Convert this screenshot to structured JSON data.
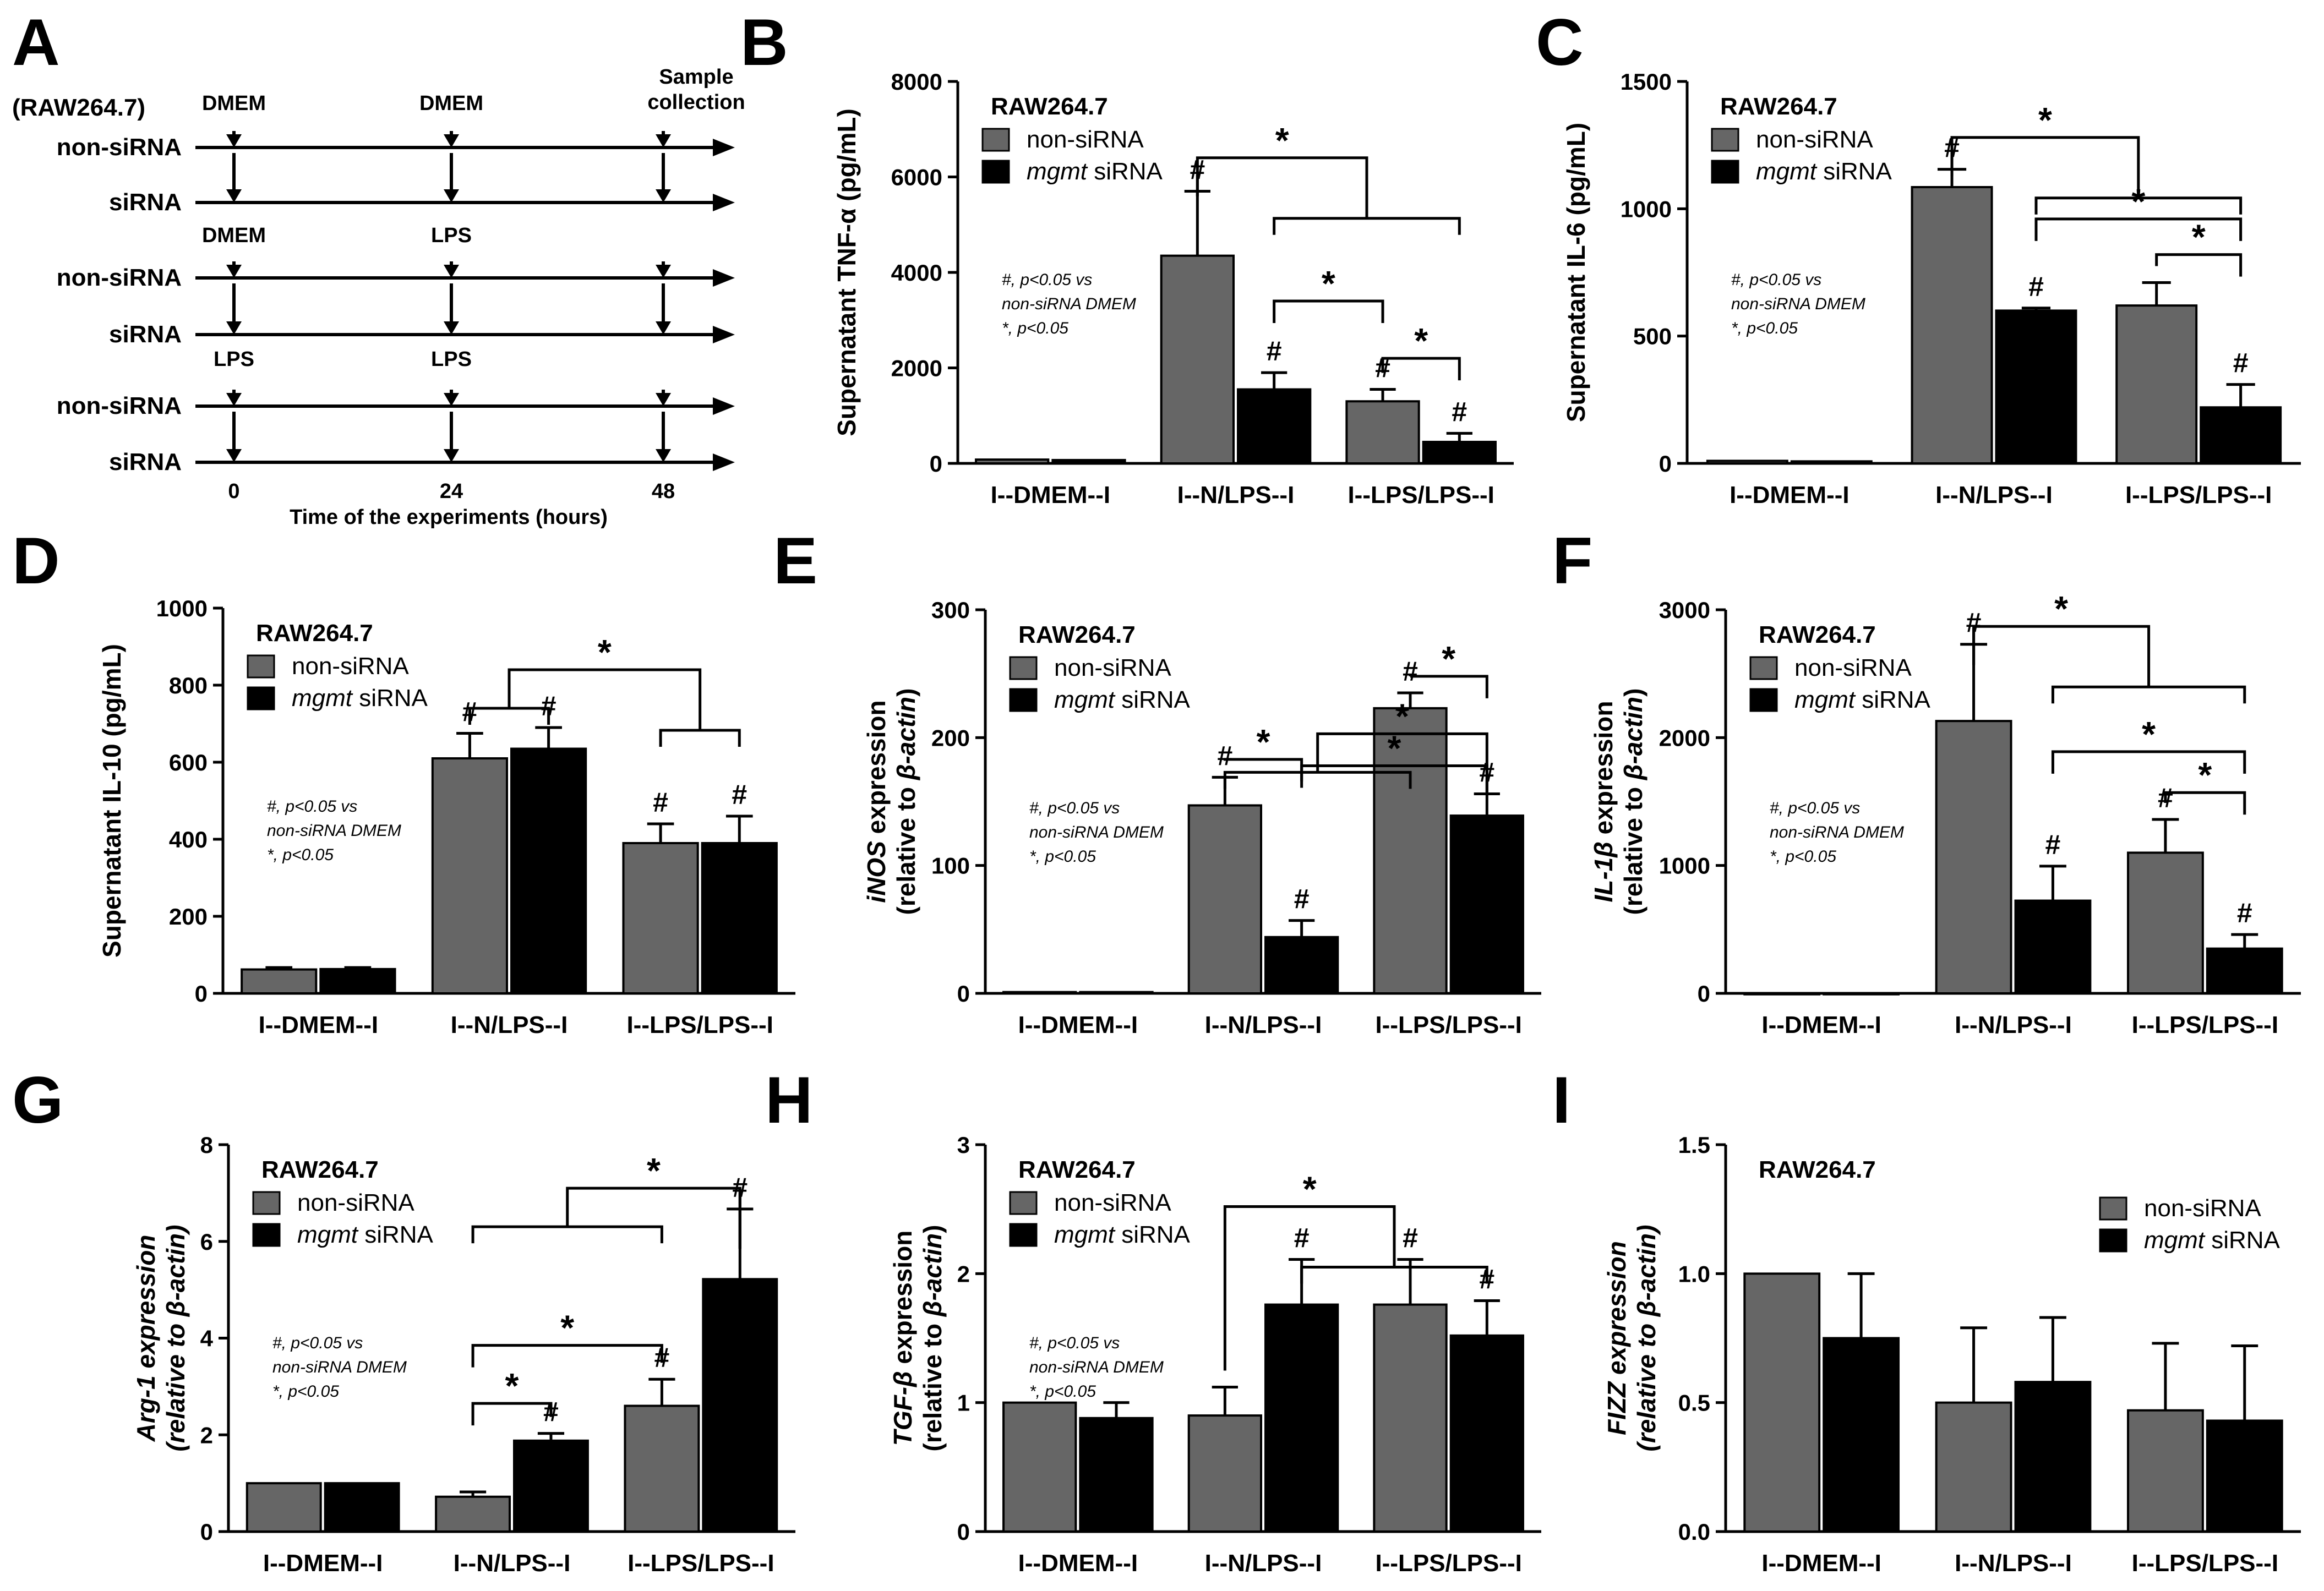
{
  "figure": {
    "colors": {
      "non_sirna": "#666666",
      "mgmt_sirna": "#000000",
      "axis": "#000000"
    },
    "legend": {
      "non_sirna": "non-siRNA",
      "mgmt_prefix": "mgmt",
      "mgmt_suffix": " siRNA"
    },
    "note_lines": [
      "#, p<0.05 vs",
      "non-siRNA DMEM",
      "*, p<0.05"
    ]
  },
  "timeline": {
    "panel_label": "A",
    "cell_line": "(RAW264.7)",
    "rows": [
      "non-siRNA",
      "siRNA",
      "non-siRNA",
      "siRNA",
      "non-siRNA",
      "siRNA"
    ],
    "time_ticks": [
      "0",
      "24",
      "48"
    ],
    "xlabel": "Time of the experiments (hours)",
    "group_labels": [
      [
        "DMEM",
        "DMEM",
        "Sample collection"
      ],
      [
        "DMEM",
        "LPS",
        ""
      ],
      [
        "LPS",
        "LPS",
        ""
      ]
    ],
    "sample_lines": [
      "Sample",
      "collection"
    ]
  },
  "chart_data": [
    {
      "panel": "B",
      "type": "bar",
      "cell_line": "RAW264.7",
      "ylabel": "Supernatant TNF-α (pg/mL)",
      "ylabel_parts": [
        "Supernatant TNF-",
        "α",
        " (pg/mL)"
      ],
      "categories": [
        "I--DMEM--I",
        "I--N/LPS--I",
        "I--LPS/LPS--I"
      ],
      "ylim": [
        0,
        8000
      ],
      "yticks": [
        "0",
        "2000",
        "4000",
        "6000",
        "8000"
      ],
      "series": [
        {
          "name": "non-siRNA",
          "values": [
            80,
            4350,
            1300
          ],
          "errors": [
            0,
            1350,
            250
          ],
          "marks": [
            "",
            "#",
            "#"
          ]
        },
        {
          "name": "mgmt siRNA",
          "values": [
            70,
            1550,
            450
          ],
          "errors": [
            0,
            350,
            180
          ],
          "marks": [
            "",
            "#",
            "#"
          ]
        }
      ]
    },
    {
      "panel": "C",
      "type": "bar",
      "cell_line": "RAW264.7",
      "ylabel": "Supernatant IL-6 (pg/mL)",
      "ylabel_parts": [
        "Supernatant IL-6 (pg/mL)"
      ],
      "categories": [
        "I--DMEM--I",
        "I--N/LPS--I",
        "I--LPS/LPS--I"
      ],
      "ylim": [
        0,
        1500
      ],
      "yticks": [
        "0",
        "500",
        "1000",
        "1500"
      ],
      "series": [
        {
          "name": "non-siRNA",
          "values": [
            10,
            1085,
            620
          ],
          "errors": [
            0,
            70,
            90
          ],
          "marks": [
            "",
            "#",
            ""
          ]
        },
        {
          "name": "mgmt siRNA",
          "values": [
            8,
            600,
            220
          ],
          "errors": [
            0,
            10,
            90
          ],
          "marks": [
            "",
            "#",
            "#"
          ]
        }
      ]
    },
    {
      "panel": "D",
      "type": "bar",
      "cell_line": "RAW264.7",
      "ylabel": "Supernatant IL-10 (pg/mL)",
      "ylabel_parts": [
        "Supernatant IL-10 (pg/mL)"
      ],
      "categories": [
        "I--DMEM--I",
        "I--N/LPS--I",
        "I--LPS/LPS--I"
      ],
      "ylim": [
        0,
        1000
      ],
      "yticks": [
        "0",
        "200",
        "400",
        "600",
        "800",
        "1000"
      ],
      "series": [
        {
          "name": "non-siRNA",
          "values": [
            62,
            610,
            390
          ],
          "errors": [
            5,
            65,
            50
          ],
          "marks": [
            "",
            "#",
            "#"
          ]
        },
        {
          "name": "mgmt siRNA",
          "values": [
            63,
            635,
            390
          ],
          "errors": [
            4,
            55,
            70
          ],
          "marks": [
            "",
            "#",
            "#"
          ]
        }
      ]
    },
    {
      "panel": "E",
      "type": "bar",
      "cell_line": "RAW264.7",
      "ylabel": "iNOS expression (relative to β-actin)",
      "ylabel_parts": [
        "iNOS",
        " expression",
        "(relative to ",
        "β-actin",
        ")"
      ],
      "categories": [
        "I--DMEM--I",
        "I--N/LPS--I",
        "I--LPS/LPS--I"
      ],
      "ylim": [
        0,
        300
      ],
      "yticks": [
        "0",
        "100",
        "200",
        "300"
      ],
      "series": [
        {
          "name": "non-siRNA",
          "values": [
            1,
            147,
            223
          ],
          "errors": [
            0,
            22,
            12
          ],
          "marks": [
            "",
            "#",
            "#"
          ]
        },
        {
          "name": "mgmt siRNA",
          "values": [
            1,
            44,
            139
          ],
          "errors": [
            0,
            13,
            17
          ],
          "marks": [
            "",
            "#",
            "#"
          ]
        }
      ]
    },
    {
      "panel": "F",
      "type": "bar",
      "cell_line": "RAW264.7",
      "ylabel": "IL-1β expression (relative to β-actin)",
      "ylabel_parts": [
        "IL-1",
        "β",
        " expression",
        "(relative to ",
        "β-actin",
        ")"
      ],
      "categories": [
        "I--DMEM--I",
        "I--N/LPS--I",
        "I--LPS/LPS--I"
      ],
      "ylim": [
        0,
        3000
      ],
      "yticks": [
        "0",
        "1000",
        "2000",
        "3000"
      ],
      "series": [
        {
          "name": "non-siRNA",
          "values": [
            1,
            2130,
            1100
          ],
          "errors": [
            0,
            600,
            260
          ],
          "marks": [
            "",
            "#",
            "#"
          ]
        },
        {
          "name": "mgmt siRNA",
          "values": [
            1,
            725,
            350
          ],
          "errors": [
            0,
            270,
            110
          ],
          "marks": [
            "",
            "#",
            "#"
          ]
        }
      ]
    },
    {
      "panel": "G",
      "type": "bar",
      "cell_line": "RAW264.7",
      "ylabel": "Arg-1 expression (relative to β-actin)",
      "ylabel_parts": [
        "Arg-1 expression",
        "(relative to ",
        "β-actin",
        ")"
      ],
      "categories": [
        "I--DMEM--I",
        "I--N/LPS--I",
        "I--LPS/LPS--I"
      ],
      "ylim": [
        0,
        8
      ],
      "yticks": [
        "0",
        "2",
        "4",
        "6",
        "8"
      ],
      "series": [
        {
          "name": "non-siRNA",
          "values": [
            1.0,
            0.72,
            2.6
          ],
          "errors": [
            0,
            0.1,
            0.55
          ],
          "marks": [
            "",
            "",
            "#"
          ]
        },
        {
          "name": "mgmt siRNA",
          "values": [
            1.0,
            1.88,
            5.22
          ],
          "errors": [
            0,
            0.15,
            1.45
          ],
          "marks": [
            "",
            "#",
            "#"
          ]
        }
      ]
    },
    {
      "panel": "H",
      "type": "bar",
      "cell_line": "RAW264.7",
      "ylabel": "TGF-β expression (relative to β-actin)",
      "ylabel_parts": [
        "TGF-",
        "β",
        " expression",
        "(relative to ",
        "β-actin",
        ")"
      ],
      "categories": [
        "I--DMEM--I",
        "I--N/LPS--I",
        "I--LPS/LPS--I"
      ],
      "ylim": [
        0,
        3
      ],
      "yticks": [
        "0",
        "1",
        "2",
        "3"
      ],
      "series": [
        {
          "name": "non-siRNA",
          "values": [
            1.0,
            0.9,
            1.76
          ],
          "errors": [
            0,
            0.22,
            0.35
          ],
          "marks": [
            "",
            "",
            "#"
          ]
        },
        {
          "name": "mgmt siRNA",
          "values": [
            0.88,
            1.76,
            1.52
          ],
          "errors": [
            0.12,
            0.35,
            0.27
          ],
          "marks": [
            "",
            "#",
            "#"
          ]
        }
      ]
    },
    {
      "panel": "I",
      "type": "bar",
      "cell_line": "RAW264.7",
      "ylabel": "FIZZ expression (relative to β-actin)",
      "ylabel_parts": [
        "FIZZ expression",
        "(relative to ",
        "β-actin",
        ")"
      ],
      "categories": [
        "I--DMEM--I",
        "I--N/LPS--I",
        "I--LPS/LPS--I"
      ],
      "ylim": [
        0,
        1.5
      ],
      "yticks": [
        "0.0",
        "0.5",
        "1.0",
        "1.5"
      ],
      "series": [
        {
          "name": "non-siRNA",
          "values": [
            1.0,
            0.5,
            0.47
          ],
          "errors": [
            0,
            0.29,
            0.26
          ],
          "marks": [
            "",
            "",
            ""
          ]
        },
        {
          "name": "mgmt siRNA",
          "values": [
            0.75,
            0.58,
            0.43
          ],
          "errors": [
            0.25,
            0.25,
            0.29
          ],
          "marks": [
            "",
            "",
            ""
          ]
        }
      ]
    }
  ]
}
